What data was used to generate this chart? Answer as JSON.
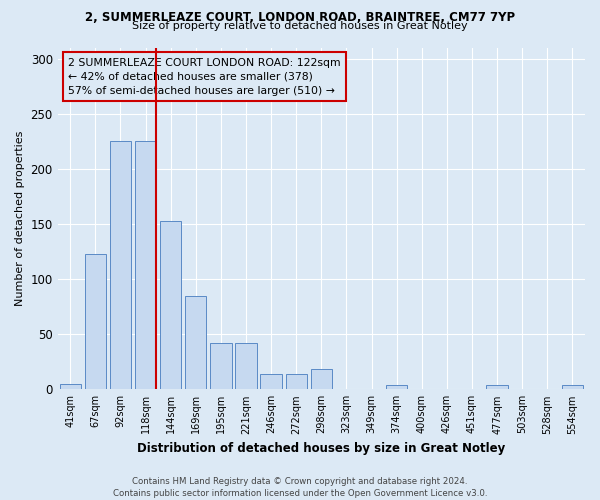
{
  "title1": "2, SUMMERLEAZE COURT, LONDON ROAD, BRAINTREE, CM77 7YP",
  "title2": "Size of property relative to detached houses in Great Notley",
  "xlabel": "Distribution of detached houses by size in Great Notley",
  "ylabel": "Number of detached properties",
  "categories": [
    "41sqm",
    "67sqm",
    "92sqm",
    "118sqm",
    "144sqm",
    "169sqm",
    "195sqm",
    "221sqm",
    "246sqm",
    "272sqm",
    "298sqm",
    "323sqm",
    "349sqm",
    "374sqm",
    "400sqm",
    "426sqm",
    "451sqm",
    "477sqm",
    "503sqm",
    "528sqm",
    "554sqm"
  ],
  "values": [
    5,
    123,
    225,
    225,
    153,
    85,
    42,
    42,
    14,
    14,
    18,
    0,
    0,
    4,
    0,
    0,
    0,
    4,
    0,
    0,
    4
  ],
  "bar_color": "#c6d9f0",
  "bar_edgecolor": "#5a8ac6",
  "vline_index": 3,
  "vline_color": "#cc0000",
  "annotation_text": "2 SUMMERLEAZE COURT LONDON ROAD: 122sqm\n← 42% of detached houses are smaller (378)\n57% of semi-detached houses are larger (510) →",
  "annotation_box_edgecolor": "#cc0000",
  "background_color": "#dce9f5",
  "grid_color": "#ffffff",
  "footnote": "Contains HM Land Registry data © Crown copyright and database right 2024.\nContains public sector information licensed under the Open Government Licence v3.0.",
  "ylim": [
    0,
    310
  ],
  "yticks": [
    0,
    50,
    100,
    150,
    200,
    250,
    300
  ]
}
